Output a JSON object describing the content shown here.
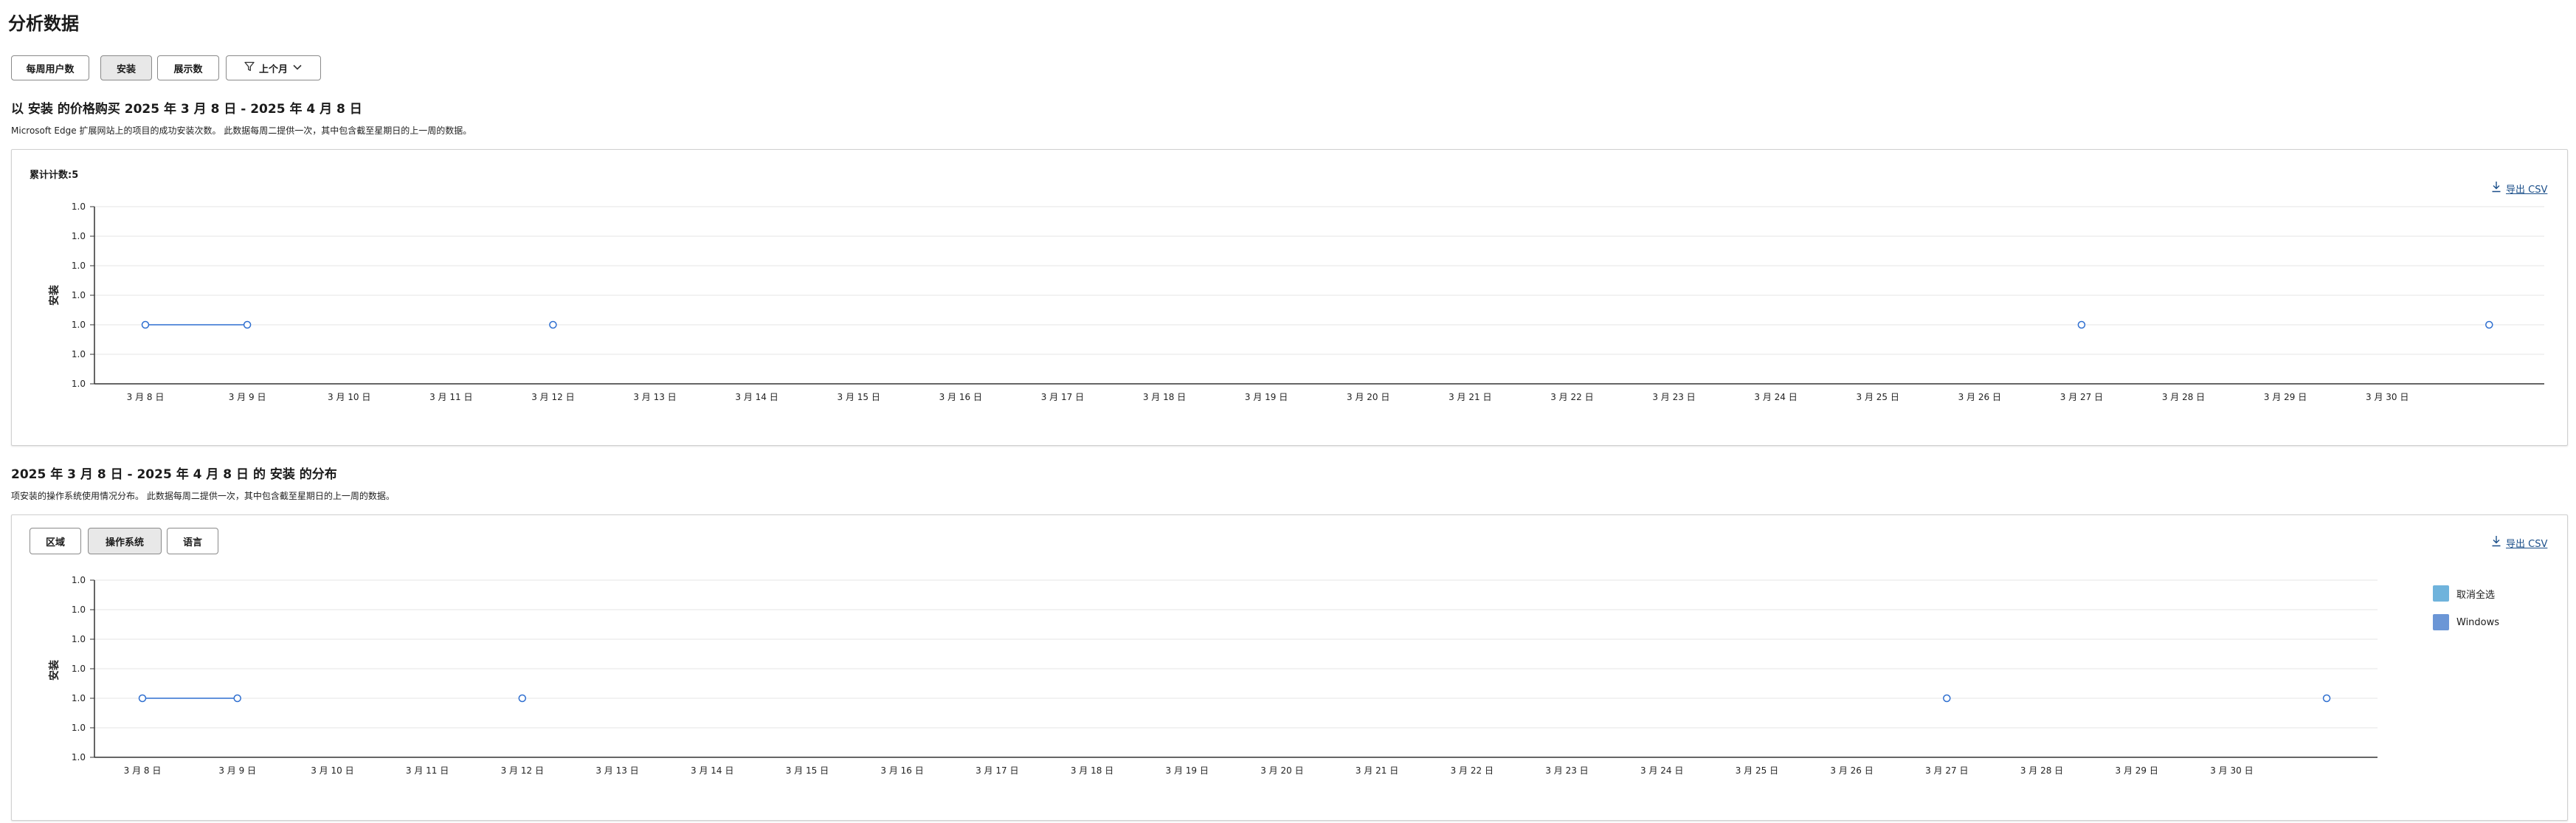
{
  "page_title": "分析数据",
  "top_buttons": [
    {
      "label": "每周用户数",
      "active": false
    },
    {
      "label": "安装",
      "active": true
    },
    {
      "label": "展示数",
      "active": false
    }
  ],
  "filter": {
    "label": "上个月",
    "icon": "filter-icon",
    "chevron": "chevron-down-icon"
  },
  "section1": {
    "title": "以 安装 的价格购买 2025 年 3 月 8 日 - 2025 年 4 月 8 日",
    "description": "Microsoft Edge 扩展网站上的项目的成功安装次数。 此数据每周二提供一次，其中包含截至星期日的上一周的数据。",
    "total_label": "累计计数:5",
    "export_label": "导出 CSV"
  },
  "section2": {
    "title": "2025 年 3 月 8 日 - 2025 年 4 月 8 日 的 安装 的分布",
    "description": "项安装的操作系统使用情况分布。 此数据每周二提供一次，其中包含截至星期日的上一周的数据。",
    "tabs": [
      {
        "label": "区域",
        "active": false
      },
      {
        "label": "操作系统",
        "active": true
      },
      {
        "label": "语言",
        "active": false
      }
    ],
    "export_label": "导出 CSV",
    "legend": [
      {
        "label": "取消全选",
        "color": "#6fb3dc"
      },
      {
        "label": "Windows",
        "color": "#6b96d6"
      }
    ]
  },
  "colors": {
    "line": "#2f6fd0",
    "grid": "#e4e4e4",
    "axis": "#333333"
  },
  "chart_data": [
    {
      "type": "line",
      "ylabel": "安装",
      "yticks": [
        "1.0",
        "1.0",
        "1.0",
        "1.0",
        "1.0",
        "1.0",
        "1.0"
      ],
      "x_tick_labels": [
        "3 月 8 日",
        "3 月 9 日",
        "3 月 10 日",
        "3 月 11 日",
        "3 月 12 日",
        "3 月 13 日",
        "3 月 14 日",
        "3 月 15 日",
        "3 月 16 日",
        "3 月 17 日",
        "3 月 18 日",
        "3 月 19 日",
        "3 月 20 日",
        "3 月 21 日",
        "3 月 22 日",
        "3 月 23 日",
        "3 月 24 日",
        "3 月 25 日",
        "3 月 26 日",
        "3 月 27 日",
        "3 月 28 日",
        "3 月 29 日",
        "3 月 30 日"
      ],
      "series": [
        {
          "points": [
            {
              "x": 0,
              "y": 1
            },
            {
              "x": 1,
              "y": 1
            },
            {
              "x": 4,
              "y": 1
            },
            {
              "x": 19,
              "y": 1
            },
            {
              "x": 23,
              "y": 1
            }
          ],
          "segments": [
            [
              0,
              1
            ]
          ]
        }
      ]
    },
    {
      "type": "line",
      "ylabel": "安装",
      "yticks": [
        "1.0",
        "1.0",
        "1.0",
        "1.0",
        "1.0",
        "1.0",
        "1.0"
      ],
      "x_tick_labels": [
        "3 月 8 日",
        "3 月 9 日",
        "3 月 10 日",
        "3 月 11 日",
        "3 月 12 日",
        "3 月 13 日",
        "3 月 14 日",
        "3 月 15 日",
        "3 月 16 日",
        "3 月 17 日",
        "3 月 18 日",
        "3 月 19 日",
        "3 月 20 日",
        "3 月 21 日",
        "3 月 22 日",
        "3 月 23 日",
        "3 月 24 日",
        "3 月 25 日",
        "3 月 26 日",
        "3 月 27 日",
        "3 月 28 日",
        "3 月 29 日",
        "3 月 30 日"
      ],
      "series": [
        {
          "name": "Windows",
          "points": [
            {
              "x": 0,
              "y": 1
            },
            {
              "x": 1,
              "y": 1
            },
            {
              "x": 4,
              "y": 1
            },
            {
              "x": 19,
              "y": 1
            },
            {
              "x": 23,
              "y": 1
            }
          ],
          "segments": [
            [
              0,
              1
            ]
          ]
        }
      ]
    }
  ]
}
